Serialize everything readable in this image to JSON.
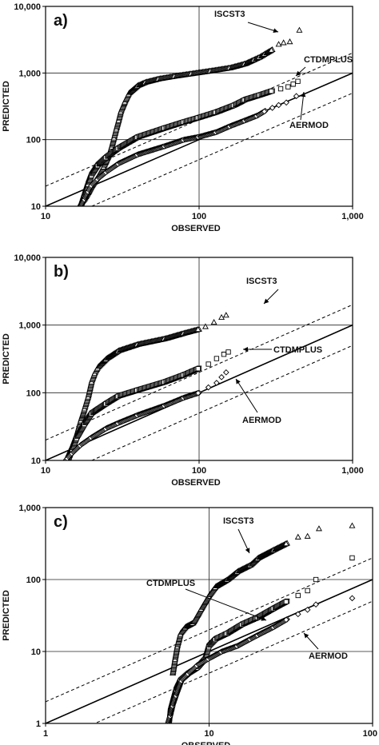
{
  "chart_data": [
    {
      "type": "scatter",
      "panel_label": "a)",
      "xlabel": "OBSERVED",
      "ylabel": "PREDICTED",
      "x_scale": "log",
      "y_scale": "log",
      "xlim": [
        10,
        1000
      ],
      "ylim": [
        10,
        10000
      ],
      "x_ticks": [
        10,
        100,
        1000
      ],
      "y_ticks": [
        10,
        100,
        1000,
        10000
      ],
      "x_tick_labels": [
        "10",
        "100",
        "1,000"
      ],
      "y_tick_labels": [
        "10",
        "100",
        "1,000",
        "10,000"
      ],
      "grid": true,
      "reference_lines": [
        {
          "style": "solid",
          "ratio": 1
        },
        {
          "style": "dashed",
          "ratio": 2
        },
        {
          "style": "dashed",
          "ratio": 0.5
        }
      ],
      "series": [
        {
          "name": "ISCST3",
          "marker": "triangle",
          "points": [
            [
              16.5,
              10
            ],
            [
              17,
              11
            ],
            [
              18,
              13
            ],
            [
              19,
              16
            ],
            [
              20,
              20
            ],
            [
              22,
              28
            ],
            [
              24,
              40
            ],
            [
              26,
              60
            ],
            [
              27,
              80
            ],
            [
              28,
              110
            ],
            [
              29,
              150
            ],
            [
              30,
              200
            ],
            [
              31,
              270
            ],
            [
              33,
              380
            ],
            [
              35,
              500
            ],
            [
              40,
              650
            ],
            [
              45,
              730
            ],
            [
              55,
              820
            ],
            [
              70,
              900
            ],
            [
              90,
              980
            ],
            [
              120,
              1080
            ],
            [
              160,
              1200
            ],
            [
              200,
              1380
            ],
            [
              230,
              1600
            ],
            [
              250,
              1750
            ],
            [
              270,
              1950
            ],
            [
              300,
              2250
            ],
            [
              330,
              2700
            ],
            [
              355,
              2850
            ],
            [
              390,
              2950
            ],
            [
              450,
              4400
            ]
          ]
        },
        {
          "name": "CTDMPLUS",
          "marker": "square",
          "points": [
            [
              17,
              10
            ],
            [
              18,
              15
            ],
            [
              19,
              22
            ],
            [
              20,
              30
            ],
            [
              22,
              42
            ],
            [
              25,
              55
            ],
            [
              30,
              75
            ],
            [
              40,
              110
            ],
            [
              60,
              150
            ],
            [
              80,
              185
            ],
            [
              100,
              215
            ],
            [
              130,
              260
            ],
            [
              170,
              330
            ],
            [
              200,
              400
            ],
            [
              250,
              470
            ],
            [
              300,
              540
            ],
            [
              340,
              580
            ],
            [
              380,
              620
            ],
            [
              410,
              680
            ],
            [
              440,
              750
            ]
          ]
        },
        {
          "name": "AERMOD",
          "marker": "diamond",
          "points": [
            [
              17,
              10
            ],
            [
              18,
              13
            ],
            [
              19,
              17
            ],
            [
              20,
              21
            ],
            [
              22,
              26
            ],
            [
              25,
              33
            ],
            [
              30,
              44
            ],
            [
              40,
              60
            ],
            [
              60,
              80
            ],
            [
              80,
              100
            ],
            [
              100,
              110
            ],
            [
              130,
              130
            ],
            [
              160,
              160
            ],
            [
              200,
              195
            ],
            [
              240,
              230
            ],
            [
              270,
              270
            ],
            [
              300,
              300
            ],
            [
              330,
              330
            ],
            [
              370,
              360
            ],
            [
              430,
              450
            ]
          ]
        }
      ],
      "annotations": [
        "ISCST3",
        "CTDMPLUS",
        "AERMOD"
      ]
    },
    {
      "type": "scatter",
      "panel_label": "b)",
      "xlabel": "OBSERVED",
      "ylabel": "PREDICTED",
      "x_scale": "log",
      "y_scale": "log",
      "xlim": [
        10,
        1000
      ],
      "ylim": [
        10,
        10000
      ],
      "x_ticks": [
        10,
        100,
        1000
      ],
      "y_ticks": [
        10,
        100,
        1000,
        10000
      ],
      "x_tick_labels": [
        "10",
        "100",
        "1,000"
      ],
      "y_tick_labels": [
        "10",
        "100",
        "1,000",
        "10,000"
      ],
      "grid": true,
      "reference_lines": [
        {
          "style": "solid",
          "ratio": 1
        },
        {
          "style": "dashed",
          "ratio": 2
        },
        {
          "style": "dashed",
          "ratio": 0.5
        }
      ],
      "series": [
        {
          "name": "ISCST3",
          "marker": "triangle",
          "points": [
            [
              13.5,
              10
            ],
            [
              14,
              12
            ],
            [
              15,
              17
            ],
            [
              16,
              25
            ],
            [
              17,
              40
            ],
            [
              18,
              60
            ],
            [
              19,
              90
            ],
            [
              20,
              150
            ],
            [
              21,
              200
            ],
            [
              22,
              240
            ],
            [
              25,
              320
            ],
            [
              30,
              420
            ],
            [
              40,
              520
            ],
            [
              60,
              630
            ],
            [
              80,
              760
            ],
            [
              100,
              870
            ],
            [
              110,
              950
            ],
            [
              125,
              1100
            ],
            [
              140,
              1300
            ],
            [
              150,
              1400
            ]
          ]
        },
        {
          "name": "CTDMPLUS",
          "marker": "square",
          "points": [
            [
              14,
              10
            ],
            [
              15,
              15
            ],
            [
              16,
              22
            ],
            [
              18,
              35
            ],
            [
              20,
              50
            ],
            [
              25,
              70
            ],
            [
              30,
              90
            ],
            [
              40,
              110
            ],
            [
              60,
              145
            ],
            [
              80,
              185
            ],
            [
              100,
              230
            ],
            [
              115,
              265
            ],
            [
              130,
              320
            ],
            [
              145,
              370
            ],
            [
              155,
              400
            ]
          ]
        },
        {
          "name": "AERMOD",
          "marker": "diamond",
          "points": [
            [
              13.5,
              10
            ],
            [
              14,
              11
            ],
            [
              15,
              13
            ],
            [
              17,
              17
            ],
            [
              20,
              22
            ],
            [
              25,
              30
            ],
            [
              30,
              36
            ],
            [
              40,
              47
            ],
            [
              60,
              65
            ],
            [
              80,
              85
            ],
            [
              100,
              100
            ],
            [
              115,
              120
            ],
            [
              130,
              140
            ],
            [
              140,
              170
            ],
            [
              150,
              200
            ]
          ]
        }
      ],
      "annotations": [
        "ISCST3",
        "CTDMPLUS",
        "AERMOD"
      ]
    },
    {
      "type": "scatter",
      "panel_label": "c)",
      "xlabel": "OBSERVED",
      "ylabel": "PREDICTED",
      "x_scale": "log",
      "y_scale": "log",
      "xlim": [
        1,
        100
      ],
      "ylim": [
        1,
        1000
      ],
      "x_ticks": [
        1,
        10,
        100
      ],
      "y_ticks": [
        1,
        10,
        100,
        1000
      ],
      "x_tick_labels": [
        "1",
        "10",
        "100"
      ],
      "y_tick_labels": [
        "1",
        "10",
        "100",
        "1,000"
      ],
      "grid": true,
      "reference_lines": [
        {
          "style": "solid",
          "ratio": 1
        },
        {
          "style": "dashed",
          "ratio": 2
        },
        {
          "style": "dashed",
          "ratio": 0.5
        }
      ],
      "series": [
        {
          "name": "ISCST3",
          "marker": "triangle",
          "points": [
            [
              6,
              5
            ],
            [
              6.2,
              8
            ],
            [
              6.4,
              12
            ],
            [
              6.7,
              18
            ],
            [
              7.2,
              22
            ],
            [
              8,
              25
            ],
            [
              9,
              40
            ],
            [
              10,
              60
            ],
            [
              11,
              80
            ],
            [
              13,
              100
            ],
            [
              15,
              130
            ],
            [
              18,
              160
            ],
            [
              20,
              200
            ],
            [
              25,
              260
            ],
            [
              30,
              320
            ],
            [
              35,
              390
            ],
            [
              40,
              400
            ],
            [
              47,
              510
            ],
            [
              75,
              560
            ]
          ]
        },
        {
          "name": "CTDMPLUS",
          "marker": "square",
          "points": [
            [
              5.7,
              1
            ],
            [
              5.8,
              1.5
            ],
            [
              6,
              2
            ],
            [
              6.3,
              3
            ],
            [
              6.7,
              4
            ],
            [
              7.5,
              5
            ],
            [
              8.5,
              6
            ],
            [
              9.5,
              8
            ],
            [
              10,
              12
            ],
            [
              11,
              15
            ],
            [
              13,
              18
            ],
            [
              16,
              24
            ],
            [
              20,
              30
            ],
            [
              25,
              40
            ],
            [
              30,
              50
            ],
            [
              35,
              60
            ],
            [
              40,
              70
            ],
            [
              45,
              100
            ],
            [
              75,
              200
            ]
          ]
        },
        {
          "name": "AERMOD",
          "marker": "diamond",
          "points": [
            [
              5.6,
              1
            ],
            [
              5.8,
              1.3
            ],
            [
              6,
              1.8
            ],
            [
              6.3,
              2.5
            ],
            [
              6.8,
              4
            ],
            [
              7.5,
              5
            ],
            [
              8.5,
              6.5
            ],
            [
              10,
              8
            ],
            [
              12,
              10
            ],
            [
              15,
              12
            ],
            [
              18,
              15
            ],
            [
              20,
              17
            ],
            [
              25,
              22
            ],
            [
              30,
              28
            ],
            [
              35,
              33
            ],
            [
              40,
              38
            ],
            [
              45,
              45
            ],
            [
              75,
              55
            ]
          ]
        }
      ],
      "annotations": [
        "ISCST3",
        "CTDMPLUS",
        "AERMOD"
      ]
    }
  ]
}
